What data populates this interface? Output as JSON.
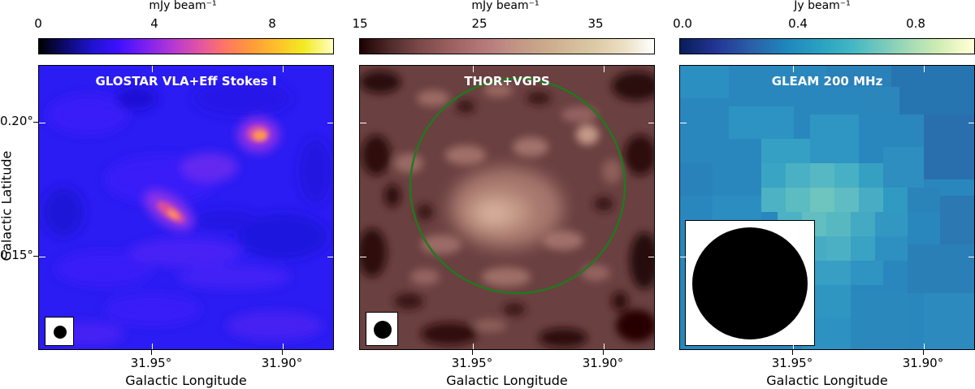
{
  "panels": [
    {
      "colorbar": {
        "unit": "mJy beam⁻¹",
        "ticks": [
          "0",
          "4",
          "8"
        ],
        "colormap": "gnuplot2"
      },
      "title": "GLOSTAR VLA+Eff Stokes I",
      "x_ticks": [
        "31.95°",
        "31.90°"
      ],
      "y_ticks": [
        "0.20°",
        "0.15°"
      ],
      "x_label": "Galactic Longitude",
      "y_label": "Galactic Latitude"
    },
    {
      "colorbar": {
        "unit": "mJy beam⁻¹",
        "ticks": [
          "15",
          "25",
          "35"
        ],
        "colormap": "pink"
      },
      "title": "THOR+VGPS",
      "x_ticks": [
        "31.95°",
        "31.90°"
      ],
      "x_label": "Galactic Longitude",
      "circle_color": "#1e7a1e"
    },
    {
      "colorbar": {
        "unit": "Jy beam⁻¹",
        "ticks": [
          "0.0",
          "0.4",
          "0.8"
        ],
        "colormap": "YlGnBu_r"
      },
      "title": "GLEAM 200 MHz",
      "x_ticks": [
        "31.95°",
        "31.90°"
      ],
      "x_label": "Galactic Longitude"
    }
  ]
}
